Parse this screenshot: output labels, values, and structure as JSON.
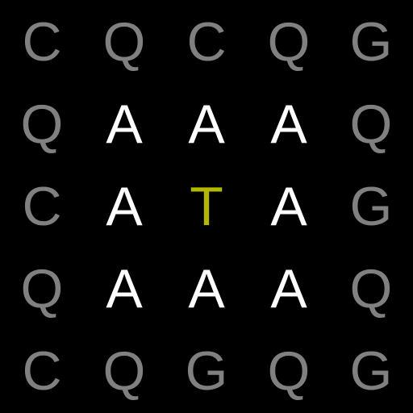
{
  "colors": {
    "background": "#000000",
    "outer": "#808080",
    "inner": "#ffffff",
    "center": "#b5b800"
  },
  "grid": {
    "rows": [
      [
        {
          "letter": "C",
          "tone": "outer"
        },
        {
          "letter": "Q",
          "tone": "outer"
        },
        {
          "letter": "C",
          "tone": "outer"
        },
        {
          "letter": "Q",
          "tone": "outer"
        },
        {
          "letter": "G",
          "tone": "outer"
        }
      ],
      [
        {
          "letter": "Q",
          "tone": "outer"
        },
        {
          "letter": "A",
          "tone": "inner"
        },
        {
          "letter": "A",
          "tone": "inner"
        },
        {
          "letter": "A",
          "tone": "inner"
        },
        {
          "letter": "Q",
          "tone": "outer"
        }
      ],
      [
        {
          "letter": "C",
          "tone": "outer"
        },
        {
          "letter": "A",
          "tone": "inner"
        },
        {
          "letter": "T",
          "tone": "center"
        },
        {
          "letter": "A",
          "tone": "inner"
        },
        {
          "letter": "G",
          "tone": "outer"
        }
      ],
      [
        {
          "letter": "Q",
          "tone": "outer"
        },
        {
          "letter": "A",
          "tone": "inner"
        },
        {
          "letter": "A",
          "tone": "inner"
        },
        {
          "letter": "A",
          "tone": "inner"
        },
        {
          "letter": "Q",
          "tone": "outer"
        }
      ],
      [
        {
          "letter": "C",
          "tone": "outer"
        },
        {
          "letter": "Q",
          "tone": "outer"
        },
        {
          "letter": "G",
          "tone": "outer"
        },
        {
          "letter": "Q",
          "tone": "outer"
        },
        {
          "letter": "G",
          "tone": "outer"
        }
      ]
    ]
  }
}
